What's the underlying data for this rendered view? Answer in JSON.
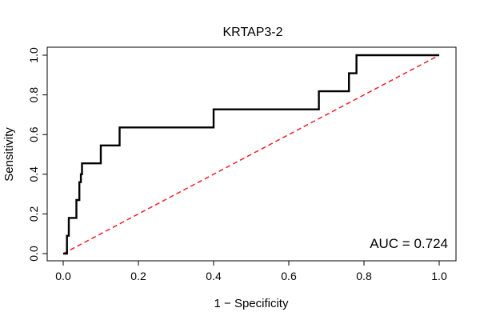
{
  "chart_data": {
    "type": "line",
    "title": "KRTAP3-2",
    "xlabel": "1 − Specificity",
    "ylabel": "Sensitivity",
    "xlim": [
      0,
      1
    ],
    "ylim": [
      0,
      1
    ],
    "x_ticks": [
      0.0,
      0.2,
      0.4,
      0.6,
      0.8,
      1.0
    ],
    "x_tick_labels": [
      "0.0",
      "0.2",
      "0.4",
      "0.6",
      "0.8",
      "1.0"
    ],
    "y_ticks": [
      0.0,
      0.2,
      0.4,
      0.6,
      0.8,
      1.0
    ],
    "y_tick_labels": [
      "0.0",
      "0.2",
      "0.4",
      "0.6",
      "0.8",
      "1.0"
    ],
    "grid": false,
    "annotation": "AUC = 0.724",
    "annotation_placement": "bottom-right",
    "series": [
      {
        "name": "ROC curve",
        "color": "#000000",
        "x": [
          0.0,
          0.01,
          0.01,
          0.015,
          0.015,
          0.02,
          0.02,
          0.035,
          0.035,
          0.043,
          0.043,
          0.047,
          0.047,
          0.05,
          0.05,
          0.1,
          0.1,
          0.15,
          0.15,
          0.4,
          0.4,
          0.68,
          0.68,
          0.76,
          0.76,
          0.78,
          0.78,
          1.0
        ],
        "y": [
          0.0,
          0.0,
          0.09,
          0.09,
          0.18,
          0.18,
          0.18,
          0.18,
          0.27,
          0.27,
          0.36,
          0.36,
          0.4,
          0.4,
          0.455,
          0.455,
          0.545,
          0.545,
          0.636,
          0.636,
          0.727,
          0.727,
          0.818,
          0.818,
          0.909,
          0.909,
          1.0,
          1.0
        ]
      },
      {
        "name": "Reference diagonal",
        "color": "#e8222a",
        "style": "dashed",
        "x": [
          0.0,
          1.0
        ],
        "y": [
          0.0,
          1.0
        ]
      }
    ]
  }
}
